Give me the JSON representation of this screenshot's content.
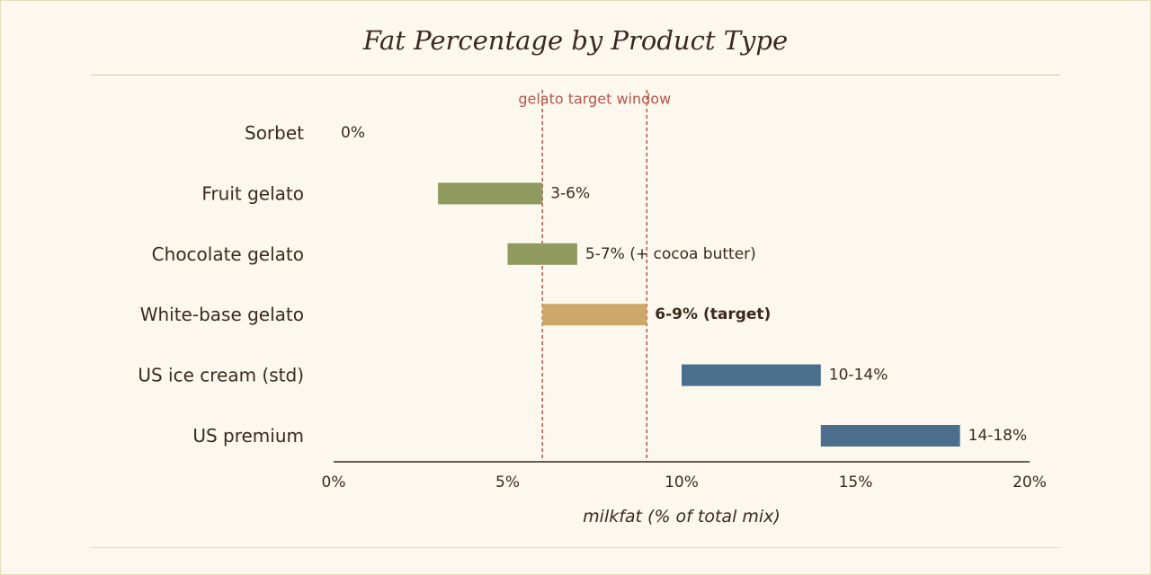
{
  "chart_data": {
    "type": "bar",
    "orientation": "horizontal-range",
    "title": "Fat Percentage by Product Type",
    "xlabel": "milkfat (% of total mix)",
    "ylabel": "",
    "xlim": [
      0,
      20
    ],
    "xticks": [
      {
        "value": 0,
        "label": "0%"
      },
      {
        "value": 5,
        "label": "5%"
      },
      {
        "value": 10,
        "label": "10%"
      },
      {
        "value": 15,
        "label": "15%"
      },
      {
        "value": 20,
        "label": "20%"
      }
    ],
    "categories": [
      "Sorbet",
      "Fruit gelato",
      "Chocolate gelato",
      "White-base gelato",
      "US ice cream (std)",
      "US premium"
    ],
    "bars": [
      {
        "category": "Sorbet",
        "low": 0,
        "high": 0,
        "label": "0%",
        "color": "#8e9a5e",
        "bold": false
      },
      {
        "category": "Fruit gelato",
        "low": 3,
        "high": 6,
        "label": "3-6%",
        "color": "#8e9a5e",
        "bold": false
      },
      {
        "category": "Chocolate gelato",
        "low": 5,
        "high": 7,
        "label": "5-7% (+ cocoa butter)",
        "color": "#8e9a5e",
        "bold": false
      },
      {
        "category": "White-base gelato",
        "low": 6,
        "high": 9,
        "label": "6-9% (target)",
        "color": "#cda86a",
        "bold": true
      },
      {
        "category": "US ice cream (std)",
        "low": 10,
        "high": 14,
        "label": "10-14%",
        "color": "#4a6e8c",
        "bold": false
      },
      {
        "category": "US premium",
        "low": 14,
        "high": 18,
        "label": "14-18%",
        "color": "#4a6e8c",
        "bold": false
      }
    ],
    "target_window": {
      "low": 6,
      "high": 9,
      "label": "gelato target window",
      "color": "#b5554a"
    },
    "grid": false,
    "legend": "none"
  },
  "colors": {
    "background": "#fdf8ee",
    "text": "#3a2a1c",
    "axis": "#3a2a1c"
  }
}
